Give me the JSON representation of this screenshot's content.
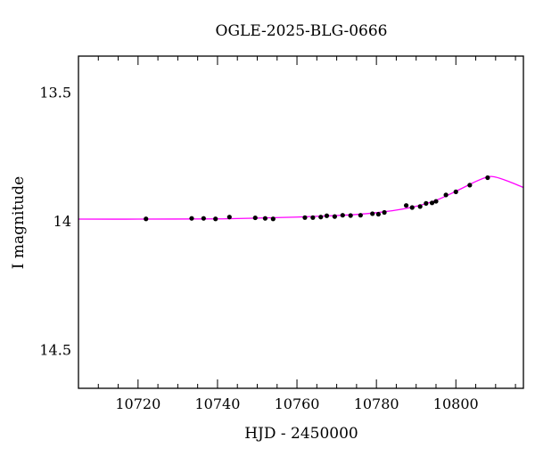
{
  "chart_data": {
    "type": "scatter",
    "title": "OGLE-2025-BLG-0666",
    "xlabel": "HJD - 2450000",
    "ylabel": "I magnitude",
    "xlim": [
      10705,
      10817
    ],
    "ylim": [
      14.65,
      13.36
    ],
    "y_inverted": true,
    "x_ticks": [
      10720,
      10740,
      10760,
      10780,
      10800
    ],
    "y_ticks": [
      13.5,
      14,
      14.5
    ],
    "y_tick_labels": [
      "13.5",
      "14",
      "14.5"
    ],
    "grid": false,
    "series": [
      {
        "kind": "points",
        "color": "#000000",
        "x": [
          10722,
          10733.5,
          10736.5,
          10739.5,
          10743,
          10749.5,
          10752,
          10754,
          10762,
          10764,
          10766,
          10767.5,
          10769.5,
          10771.5,
          10773.5,
          10776,
          10779,
          10780.5,
          10782,
          10787.5,
          10789,
          10791,
          10792.5,
          10794,
          10795,
          10797.5,
          10800,
          10803.5,
          10808
        ],
        "y": [
          13.992,
          13.99,
          13.99,
          13.992,
          13.985,
          13.988,
          13.99,
          13.992,
          13.987,
          13.987,
          13.985,
          13.98,
          13.983,
          13.978,
          13.979,
          13.978,
          13.972,
          13.974,
          13.967,
          13.94,
          13.948,
          13.944,
          13.932,
          13.93,
          13.924,
          13.899,
          13.887,
          13.861,
          13.832
        ]
      },
      {
        "kind": "model",
        "color": "#ff00ff",
        "x": [
          10705,
          10720,
          10740,
          10750,
          10760,
          10770,
          10775,
          10780,
          10785,
          10790,
          10795,
          10800,
          10805,
          10808,
          10810,
          10813,
          10817
        ],
        "y": [
          13.993,
          13.993,
          13.992,
          13.989,
          13.985,
          13.979,
          13.975,
          13.968,
          13.958,
          13.943,
          13.92,
          13.885,
          13.847,
          13.829,
          13.83,
          13.845,
          13.87
        ]
      }
    ]
  }
}
